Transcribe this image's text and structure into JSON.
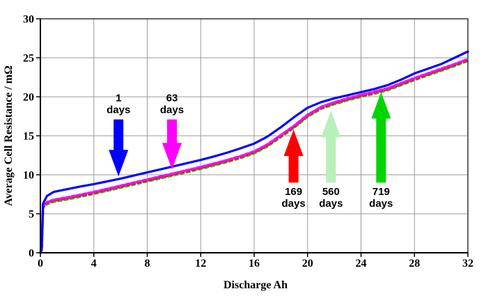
{
  "chart_data": {
    "type": "line",
    "title": "",
    "xlabel": "Discharge Ah",
    "ylabel": "Average Cell Resistance / mΩ",
    "xlim": [
      0,
      32
    ],
    "ylim": [
      0,
      30
    ],
    "x_ticks": [
      0,
      4,
      8,
      12,
      16,
      20,
      24,
      28,
      32
    ],
    "y_ticks": [
      0,
      5,
      10,
      15,
      20,
      25,
      30
    ],
    "grid": true,
    "legend_position": "none",
    "grid_color": "#999999",
    "axis_color": "#000000",
    "x": [
      0,
      0.1,
      0.2,
      0.5,
      1,
      2,
      3,
      4,
      5,
      6,
      7,
      8,
      9,
      10,
      11,
      12,
      13,
      14,
      15,
      16,
      17,
      18,
      19,
      20,
      21,
      22,
      23,
      24,
      25,
      26,
      27,
      28,
      29,
      30,
      31,
      32
    ],
    "series": [
      {
        "name": "560 days",
        "color": "#B9EFB9",
        "style": "dashed",
        "dash": "3 5",
        "width": 3.6,
        "y": [
          0,
          0.35,
          5.82,
          6.32,
          6.62,
          6.92,
          7.27,
          7.62,
          8.02,
          8.42,
          8.82,
          9.22,
          9.62,
          10.02,
          10.42,
          10.82,
          11.27,
          11.72,
          12.22,
          12.82,
          13.72,
          14.92,
          16.12,
          17.52,
          18.52,
          19.12,
          19.62,
          20.07,
          20.47,
          20.92,
          21.57,
          22.22,
          22.82,
          23.42,
          24.02,
          24.67
        ]
      },
      {
        "name": "719 days",
        "color": "#00D500",
        "style": "dashed",
        "dash": "4 5",
        "width": 3.6,
        "y": [
          0,
          0.3,
          5.75,
          6.25,
          6.55,
          6.85,
          7.2,
          7.55,
          7.95,
          8.35,
          8.75,
          9.15,
          9.55,
          9.95,
          10.35,
          10.75,
          11.2,
          11.65,
          12.15,
          12.75,
          13.65,
          14.85,
          16.05,
          17.45,
          18.45,
          19.05,
          19.55,
          20.0,
          20.4,
          20.85,
          21.5,
          22.15,
          22.75,
          23.35,
          23.95,
          24.6
        ]
      },
      {
        "name": "169 days",
        "color": "#FF0000",
        "style": "dashed",
        "dash": "4 4",
        "width": 3.4,
        "y": [
          0,
          0.4,
          5.9,
          6.4,
          6.7,
          7.0,
          7.33,
          7.68,
          8.08,
          8.48,
          8.88,
          9.28,
          9.68,
          10.08,
          10.48,
          10.88,
          11.33,
          11.78,
          12.28,
          12.88,
          13.78,
          14.98,
          16.18,
          17.58,
          18.58,
          19.18,
          19.68,
          20.13,
          20.53,
          20.98,
          21.63,
          22.28,
          22.88,
          23.48,
          24.08,
          24.73
        ]
      },
      {
        "name": "63 days",
        "color": "#FF00FF",
        "style": "dashed",
        "dash": "5 3",
        "width": 3.4,
        "y": [
          0,
          0.5,
          6.0,
          6.5,
          6.8,
          7.1,
          7.45,
          7.8,
          8.2,
          8.6,
          9.0,
          9.4,
          9.8,
          10.2,
          10.6,
          11.0,
          11.45,
          11.9,
          12.4,
          13.0,
          13.9,
          15.1,
          16.3,
          17.7,
          18.7,
          19.3,
          19.8,
          20.25,
          20.65,
          21.1,
          21.75,
          22.4,
          23.0,
          23.6,
          24.2,
          24.85
        ]
      },
      {
        "name": "1 days",
        "color": "#0000FF",
        "style": "solid",
        "dash": "",
        "width": 3.2,
        "y": [
          0,
          0.5,
          6.3,
          7.3,
          7.8,
          8.15,
          8.5,
          8.8,
          9.15,
          9.5,
          9.9,
          10.3,
          10.7,
          11.1,
          11.5,
          11.9,
          12.35,
          12.85,
          13.4,
          14.0,
          14.9,
          16.1,
          17.4,
          18.6,
          19.3,
          19.8,
          20.2,
          20.6,
          21.0,
          21.5,
          22.2,
          23.0,
          23.6,
          24.2,
          25.0,
          25.8
        ]
      }
    ],
    "annotations": [
      {
        "name": "arrow-1-days",
        "lines": [
          "1",
          "days"
        ],
        "x": 5.85,
        "tip_y": 9.8,
        "tail_y": 17.1,
        "direction": "down",
        "color": "#0000FF"
      },
      {
        "name": "arrow-63-days",
        "lines": [
          "63",
          "days"
        ],
        "x": 9.85,
        "tip_y": 10.7,
        "tail_y": 17.1,
        "direction": "down",
        "color": "#FF00FF"
      },
      {
        "name": "arrow-169-days",
        "lines": [
          "169",
          "days"
        ],
        "x": 18.95,
        "tip_y": 15.8,
        "tail_y": 9.0,
        "direction": "up",
        "color": "#FF0000"
      },
      {
        "name": "arrow-560-days",
        "lines": [
          "560",
          "days"
        ],
        "x": 21.75,
        "tip_y": 18.2,
        "tail_y": 9.0,
        "direction": "up",
        "color": "#B9EFB9"
      },
      {
        "name": "arrow-719-days",
        "lines": [
          "719",
          "days"
        ],
        "x": 25.5,
        "tip_y": 20.6,
        "tail_y": 9.0,
        "direction": "up",
        "color": "#00D500"
      }
    ]
  }
}
